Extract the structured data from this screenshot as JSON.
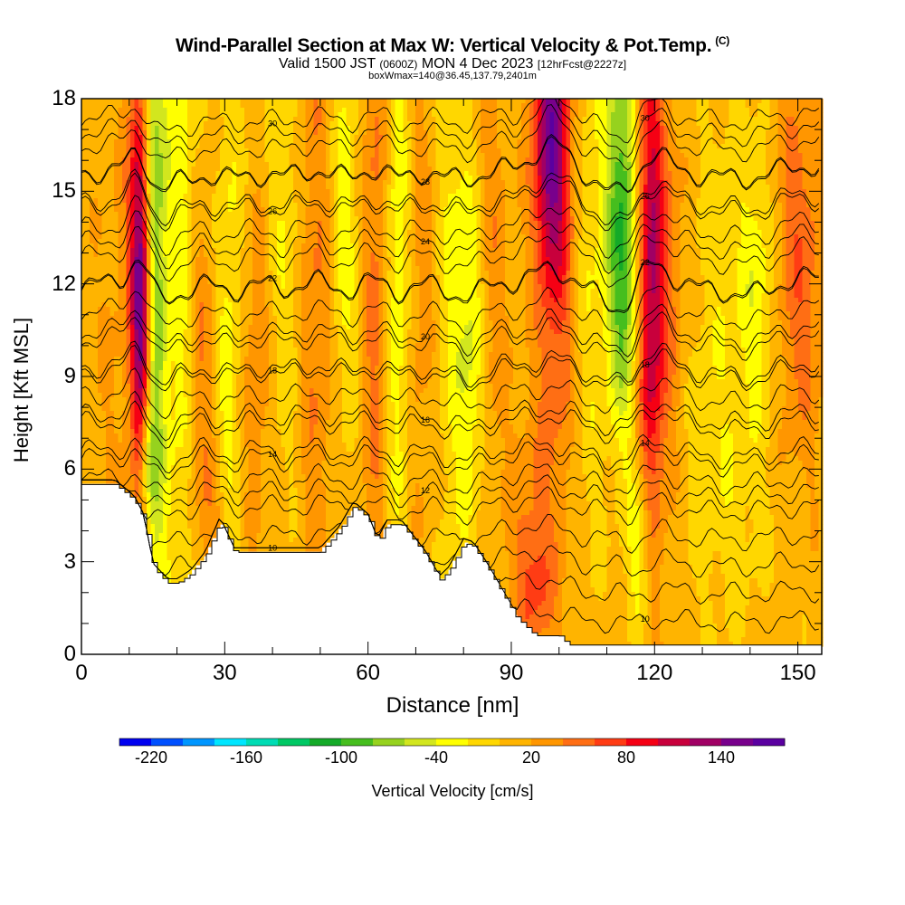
{
  "header": {
    "title": "Wind-Parallel Section at Max W: Vertical Velocity & Pot.Temp.",
    "title_mark": "(C)",
    "valid_prefix": "Valid 1500 JST",
    "valid_utc": "(0600Z)",
    "valid_date": "MON 4 Dec 2023",
    "valid_fcst": "[12hrFcst@2227z]",
    "box_info": "boxWmax=140@36.45,137.79,2401m"
  },
  "chart_data": {
    "type": "heatmap",
    "title": "Wind-Parallel Section at Max W: Vertical Velocity & Pot.Temp.",
    "xlabel": "Distance [nm]",
    "ylabel": "Height [Kft MSL]",
    "xlim": [
      0,
      155
    ],
    "ylim": [
      0,
      18
    ],
    "xticks": [
      0,
      30,
      60,
      90,
      120,
      150
    ],
    "xtick_labels": [
      "0",
      "30",
      "60",
      "90",
      "120",
      "150"
    ],
    "yticks": [
      0,
      3,
      6,
      9,
      12,
      15,
      18
    ],
    "ytick_labels": [
      "0",
      "3",
      "6",
      "9",
      "12",
      "15",
      "18"
    ],
    "colorbar": {
      "label": "Vertical Velocity [cm/s]",
      "tick_values": [
        -220,
        -160,
        -100,
        -40,
        20,
        80,
        140
      ],
      "tick_labels": [
        "-220",
        "-160",
        "-100",
        "-40",
        "20",
        "80",
        "140"
      ],
      "range": [
        -240,
        180
      ],
      "colors": [
        "#0000f0",
        "#0050ff",
        "#0096ff",
        "#00e6ff",
        "#00dcb4",
        "#00c864",
        "#14aa28",
        "#46be1e",
        "#96d21e",
        "#d2e61e",
        "#ffff00",
        "#ffd700",
        "#ffb400",
        "#ff9600",
        "#ff6e14",
        "#ff3c14",
        "#f50014",
        "#c8003c",
        "#a00064",
        "#78008c",
        "#5a00a0"
      ]
    },
    "terrain": [
      [
        0,
        5.5
      ],
      [
        7,
        5.5
      ],
      [
        11,
        5.0
      ],
      [
        13,
        4.4
      ],
      [
        15,
        2.8
      ],
      [
        18,
        2.3
      ],
      [
        20,
        2.3
      ],
      [
        23,
        2.6
      ],
      [
        26,
        3.2
      ],
      [
        29,
        4.3
      ],
      [
        32,
        3.3
      ],
      [
        35,
        3.3
      ],
      [
        45,
        3.3
      ],
      [
        50,
        3.3
      ],
      [
        54,
        4.0
      ],
      [
        57,
        4.8
      ],
      [
        60,
        4.4
      ],
      [
        62,
        3.6
      ],
      [
        64,
        4.2
      ],
      [
        67,
        4.2
      ],
      [
        72,
        3.2
      ],
      [
        75,
        2.4
      ],
      [
        77,
        2.7
      ],
      [
        80,
        3.6
      ],
      [
        82,
        3.5
      ],
      [
        85,
        2.8
      ],
      [
        88,
        2.0
      ],
      [
        91,
        1.2
      ],
      [
        95,
        0.6
      ],
      [
        100,
        0.6
      ],
      [
        102,
        0.3
      ],
      [
        155,
        0.3
      ]
    ],
    "wcells": [
      {
        "x": 13,
        "y": 9.6,
        "sx": 1.5,
        "sy": 4.2,
        "v": 140
      },
      {
        "x": 12,
        "y": 14.5,
        "sx": 1.6,
        "sy": 4,
        "v": 85
      },
      {
        "x": 15,
        "y": 12,
        "sx": 1.8,
        "sy": 8,
        "v": -110
      },
      {
        "x": 13.5,
        "y": 6.5,
        "sx": 1.2,
        "sy": 1.5,
        "v": -80
      },
      {
        "x": 21,
        "y": 13,
        "sx": 2.5,
        "sy": 9,
        "v": -45
      },
      {
        "x": 25,
        "y": 10,
        "sx": 2.5,
        "sy": 4,
        "v": 40
      },
      {
        "x": 31,
        "y": 9,
        "sx": 2.5,
        "sy": 7,
        "v": -45
      },
      {
        "x": 36,
        "y": 9,
        "sx": 2.8,
        "sy": 4,
        "v": 35
      },
      {
        "x": 43,
        "y": 13,
        "sx": 3,
        "sy": 6,
        "v": -30
      },
      {
        "x": 49,
        "y": 12,
        "sx": 3,
        "sy": 7,
        "v": 40
      },
      {
        "x": 55,
        "y": 14,
        "sx": 2.5,
        "sy": 5,
        "v": -40
      },
      {
        "x": 62,
        "y": 13,
        "sx": 2.5,
        "sy": 8,
        "v": 45
      },
      {
        "x": 66,
        "y": 12.5,
        "sx": 2,
        "sy": 7,
        "v": -60
      },
      {
        "x": 71,
        "y": 12,
        "sx": 3,
        "sy": 6,
        "v": 25
      },
      {
        "x": 78,
        "y": 12,
        "sx": 3,
        "sy": 7,
        "v": -35
      },
      {
        "x": 82,
        "y": 10,
        "sx": 2,
        "sy": 4,
        "v": -50
      },
      {
        "x": 85,
        "y": 13,
        "sx": 3,
        "sy": 6,
        "v": 30
      },
      {
        "x": 98,
        "y": 16.5,
        "sx": 2.5,
        "sy": 3,
        "v": 115
      },
      {
        "x": 100,
        "y": 13,
        "sx": 3,
        "sy": 6,
        "v": 55
      },
      {
        "x": 106,
        "y": 12.5,
        "sx": 3,
        "sy": 6,
        "v": -30
      },
      {
        "x": 113,
        "y": 15.5,
        "sx": 2.3,
        "sy": 4.5,
        "v": -90
      },
      {
        "x": 114,
        "y": 11,
        "sx": 2.5,
        "sy": 3,
        "v": -45
      },
      {
        "x": 119,
        "y": 12,
        "sx": 2,
        "sy": 6,
        "v": 100
      },
      {
        "x": 122,
        "y": 12,
        "sx": 3,
        "sy": 5,
        "v": 40
      },
      {
        "x": 117,
        "y": 3.5,
        "sx": 1.8,
        "sy": 2,
        "v": -55
      },
      {
        "x": 134,
        "y": 12,
        "sx": 5,
        "sy": 5,
        "v": -20
      },
      {
        "x": 142,
        "y": 12,
        "sx": 3,
        "sy": 3,
        "v": -40
      },
      {
        "x": 150,
        "y": 14,
        "sx": 4,
        "sy": 4,
        "v": 35
      },
      {
        "x": 150,
        "y": 10,
        "sx": 4,
        "sy": 4,
        "v": 20
      },
      {
        "x": 8,
        "y": 10,
        "sx": 4,
        "sy": 6,
        "v": 15
      },
      {
        "x": 28,
        "y": 4.5,
        "sx": 3,
        "sy": 1.5,
        "v": 30
      },
      {
        "x": 94,
        "y": 4,
        "sx": 3,
        "sy": 3,
        "v": 30
      },
      {
        "x": 95,
        "y": 2,
        "sx": 3,
        "sy": 1.5,
        "v": 35
      },
      {
        "x": 135,
        "y": 5,
        "sx": 8,
        "sy": 3,
        "v": -15
      }
    ],
    "theta_levels": [
      {
        "value": 10,
        "y0": 1.1,
        "shown": true
      },
      {
        "value": 12,
        "y0": 5.2,
        "shown": true
      },
      {
        "value": 14,
        "y0": 6.3,
        "shown": true
      },
      {
        "value": 16,
        "y0": 7.7,
        "shown": true
      },
      {
        "value": 18,
        "y0": 9.1,
        "shown": true
      },
      {
        "value": 20,
        "y0": 10.4,
        "shown": true
      },
      {
        "value": 22,
        "y0": 11.9,
        "shown": true
      },
      {
        "value": 24,
        "y0": 13.3,
        "shown": true
      },
      {
        "value": 26,
        "y0": 14.5,
        "shown": true
      },
      {
        "value": 28,
        "y0": 15.6,
        "shown": true
      },
      {
        "value": 30,
        "y0": 16.9,
        "shown": true
      }
    ],
    "theta_extra_lines": 18
  }
}
